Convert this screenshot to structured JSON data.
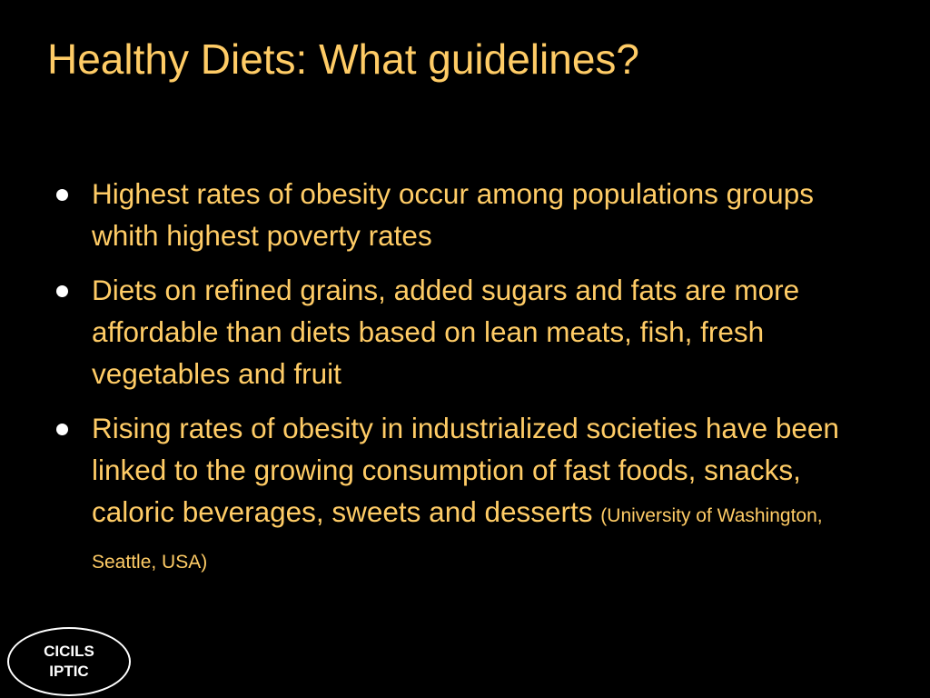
{
  "slide": {
    "title": "Healthy Diets: What guidelines?",
    "bullets": [
      {
        "text": "Highest rates of obesity occur among populations groups whith highest poverty rates"
      },
      {
        "text": "Diets on refined grains, added sugars and fats are more affordable than diets based on lean meats, fish, fresh vegetables and fruit"
      },
      {
        "text": "Rising rates of obesity in industrialized societies have been linked to the growing consumption of fast foods, snacks, caloric beverages, sweets and desserts",
        "citation": "(University of Washington, Seattle, USA)"
      }
    ],
    "logo": {
      "line1": "CICILS",
      "line2": "IPTIC"
    }
  },
  "colors": {
    "background": "#000000",
    "text": "#FFCC66",
    "bullet": "#FFFFFF",
    "logo": "#FFFFFF"
  }
}
